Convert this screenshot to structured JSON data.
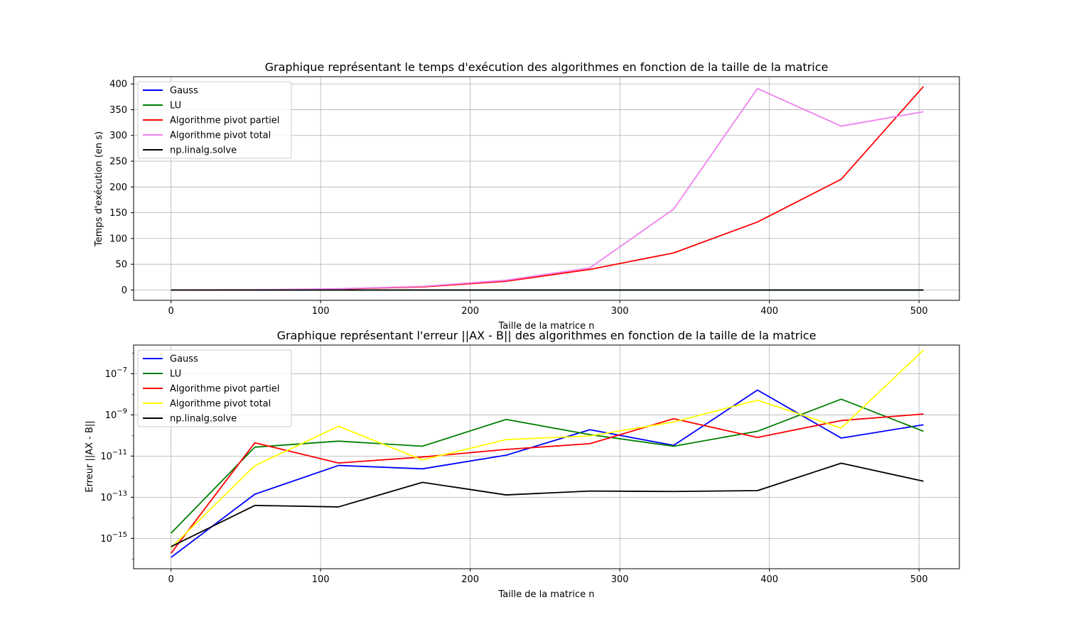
{
  "chart_data": [
    {
      "type": "line",
      "title": "Graphique représentant le temps d'exécution des algorithmes en fonction de la taille de la matrice",
      "xlabel": "Taille de la matrice n",
      "ylabel": "Temps d'exécution (en s)",
      "yscale": "linear",
      "xlim": [
        -25,
        527
      ],
      "ylim": [
        -20,
        414
      ],
      "xticks": [
        0,
        100,
        200,
        300,
        400,
        500
      ],
      "yticks": [
        0,
        50,
        100,
        150,
        200,
        250,
        300,
        350,
        400
      ],
      "grid": true,
      "legend_position": "upper-left",
      "x": [
        0,
        56,
        112,
        168,
        224,
        280,
        336,
        392,
        448,
        503
      ],
      "series": [
        {
          "name": "Gauss",
          "color": "#0000ff",
          "values": [
            0.001,
            0.002,
            0.003,
            0.004,
            0.005,
            0.006,
            0.007,
            0.008,
            0.009,
            0.01
          ]
        },
        {
          "name": "LU",
          "color": "#008000",
          "values": [
            0.001,
            0.002,
            0.003,
            0.004,
            0.005,
            0.006,
            0.007,
            0.008,
            0.009,
            0.01
          ]
        },
        {
          "name": "Algorithme pivot partiel",
          "color": "#ff0000",
          "values": [
            0,
            0.3,
            2,
            6,
            17,
            40,
            72,
            132,
            215,
            395
          ]
        },
        {
          "name": "Algorithme pivot total",
          "color": "#ee82ee",
          "values": [
            0,
            0.4,
            2.5,
            7,
            19,
            43,
            157,
            391,
            318,
            346
          ]
        },
        {
          "name": "np.linalg.solve",
          "color": "#000000",
          "values": [
            0,
            0,
            0,
            0,
            0,
            0,
            0,
            0,
            0,
            0
          ]
        }
      ]
    },
    {
      "type": "line",
      "title": "Graphique représentant l'erreur ||AX - B|| des algorithmes en fonction de la taille de la matrice",
      "xlabel": "Taille de la matrice n",
      "ylabel": "Erreur ||AX - B||",
      "yscale": "log",
      "xlim": [
        -25,
        527
      ],
      "ylim_exponent": [
        -16.47,
        -5.61
      ],
      "xticks": [
        0,
        100,
        200,
        300,
        400,
        500
      ],
      "ytick_exponents": [
        -15,
        -13,
        -11,
        -9,
        -7
      ],
      "ytick_labels": [
        "10",
        "10",
        "10",
        "10",
        "10"
      ],
      "ytick_superscripts": [
        "−15",
        "−13",
        "−11",
        "−9",
        "−7"
      ],
      "grid": true,
      "legend_position": "upper-left",
      "x": [
        0,
        56,
        112,
        168,
        224,
        280,
        336,
        392,
        448,
        503
      ],
      "series": [
        {
          "name": "Gauss",
          "color": "#0000ff",
          "values": [
            1.2e-16,
            1.4e-13,
            3.5e-12,
            2.4e-12,
            1.1e-11,
            1.9e-10,
            3.3e-11,
            1.6e-08,
            7.5e-11,
            3.3e-10
          ]
        },
        {
          "name": "LU",
          "color": "#008000",
          "values": [
            1.8e-15,
            2.7e-11,
            5.3e-11,
            3e-11,
            6e-10,
            1.1e-10,
            3e-11,
            1.6e-10,
            5.8e-09,
            1.6e-10
          ]
        },
        {
          "name": "Algorithme pivot partiel",
          "color": "#ff0000",
          "values": [
            1.9e-16,
            4.4e-11,
            4.6e-12,
            9e-12,
            2.1e-11,
            4e-11,
            6.5e-10,
            8e-11,
            5.3e-10,
            1.1e-09
          ]
        },
        {
          "name": "Algorithme pivot total",
          "color": "#ffff00",
          "values": [
            3.5e-16,
            3.4e-12,
            2.8e-10,
            6.5e-12,
            6.3e-11,
            9.5e-11,
            4.5e-10,
            5.2e-09,
            2.3e-10,
            1.4e-06
          ]
        },
        {
          "name": "np.linalg.solve",
          "color": "#000000",
          "values": [
            4e-16,
            4e-14,
            3.4e-14,
            5.3e-13,
            1.3e-13,
            2e-13,
            1.9e-13,
            2.1e-13,
            4.5e-12,
            6e-13
          ]
        }
      ]
    }
  ]
}
